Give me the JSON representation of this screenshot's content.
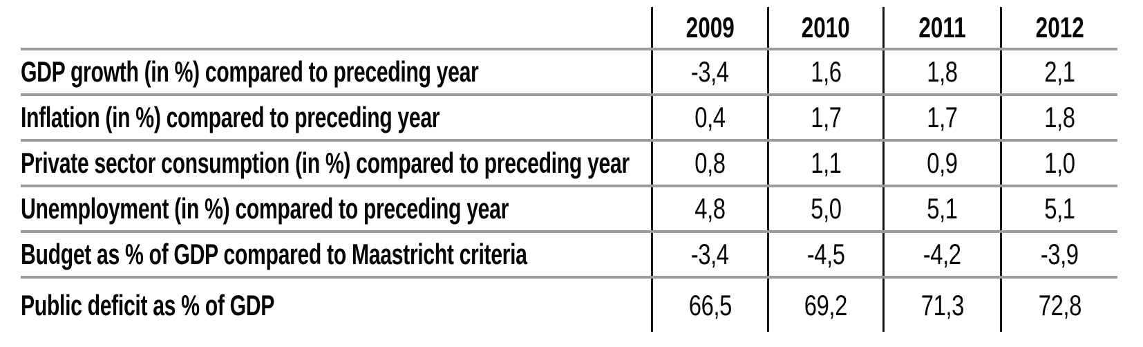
{
  "colors": {
    "background": "#ffffff",
    "row_divider": "#9c9c9c",
    "column_divider": "#161616",
    "text": "#060606"
  },
  "table": {
    "columns": [
      "",
      "2009",
      "2010",
      "2011",
      "2012"
    ],
    "rows": [
      {
        "label": "GDP growth (in %) compared to preceding year",
        "values": [
          "-3,4",
          "1,6",
          "1,8",
          "2,1"
        ]
      },
      {
        "label": "Inflation (in %) compared to preceding year",
        "values": [
          "0,4",
          "1,7",
          "1,7",
          "1,8"
        ]
      },
      {
        "label": "Private sector consumption (in %) compared to preceding year",
        "values": [
          "0,8",
          "1,1",
          "0,9",
          "1,0"
        ]
      },
      {
        "label": "Unemployment (in %) compared to preceding year",
        "values": [
          "4,8",
          "5,0",
          "5,1",
          "5,1"
        ]
      },
      {
        "label": "Budget as % of GDP compared to Maastricht criteria",
        "values": [
          "-3,4",
          "-4,5",
          "-4,2",
          "-3,9"
        ]
      },
      {
        "label": "Public deficit as % of GDP",
        "values": [
          "66,5",
          "69,2",
          "71,3",
          "72,8"
        ]
      }
    ]
  },
  "chart_data": {
    "type": "table",
    "columns": [
      "2009",
      "2010",
      "2011",
      "2012"
    ],
    "decimal_separator": ",",
    "rows": [
      {
        "label": "GDP growth (in %) compared to preceding year",
        "values": [
          -3.4,
          1.6,
          1.8,
          2.1
        ]
      },
      {
        "label": "Inflation (in %) compared to preceding year",
        "values": [
          0.4,
          1.7,
          1.7,
          1.8
        ]
      },
      {
        "label": "Private sector consumption (in %) compared to preceding year",
        "values": [
          0.8,
          1.1,
          0.9,
          1.0
        ]
      },
      {
        "label": "Unemployment (in %) compared to preceding year",
        "values": [
          4.8,
          5.0,
          5.1,
          5.1
        ]
      },
      {
        "label": "Budget as % of GDP compared to Maastricht criteria",
        "values": [
          -3.4,
          -4.5,
          -4.2,
          -3.9
        ]
      },
      {
        "label": "Public deficit as % of GDP",
        "values": [
          66.5,
          69.2,
          71.3,
          72.8
        ]
      }
    ]
  }
}
